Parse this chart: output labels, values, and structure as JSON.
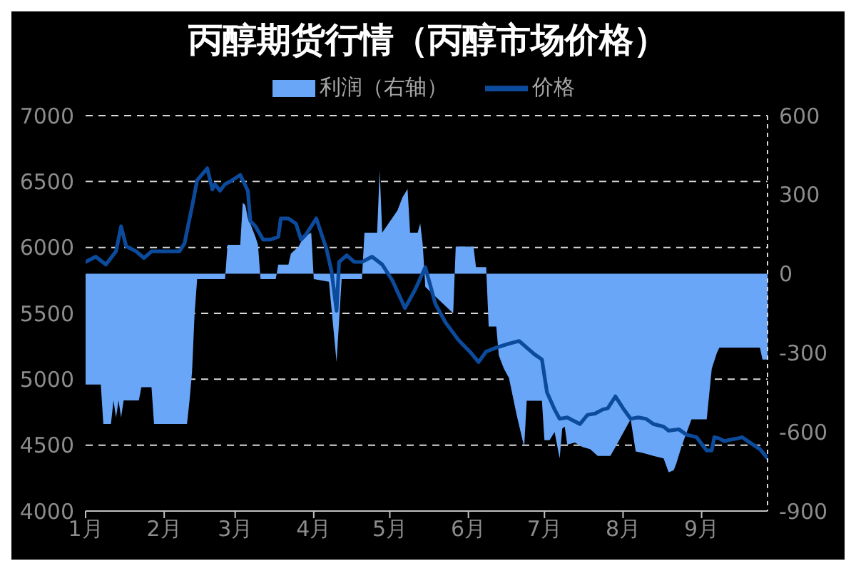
{
  "chart_data": {
    "type": "line",
    "title": "丙醇期货行情（丙醇市场价格）",
    "xlim": [
      "--01-01",
      "--09-27"
    ],
    "xticks": [
      {
        "value": "--01-01",
        "label": "1月"
      },
      {
        "value": "--02-01",
        "label": "2月"
      },
      {
        "value": "--03-01",
        "label": "3月"
      },
      {
        "value": "--04-01",
        "label": "4月"
      },
      {
        "value": "--05-01",
        "label": "5月"
      },
      {
        "value": "--06-01",
        "label": "6月"
      },
      {
        "value": "--07-01",
        "label": "7月"
      },
      {
        "value": "--08-01",
        "label": "8月"
      },
      {
        "value": "--09-01",
        "label": "9月"
      }
    ],
    "ylim": [
      4000,
      7000
    ],
    "yticks": [
      4000,
      4500,
      5000,
      5500,
      6000,
      6500,
      7000
    ],
    "y2lim": [
      -900,
      600
    ],
    "y2ticks": [
      -900,
      -600,
      -300,
      0,
      300,
      600
    ],
    "grid": "y",
    "legend": "top",
    "series": [
      {
        "name": "利润（右轴）",
        "type": "area",
        "axis": "y2",
        "color": "#6aa6f8",
        "x": [
          "--01-01",
          "--01-07",
          "--01-08",
          "--01-11",
          "--01-12",
          "--01-13",
          "--01-14",
          "--01-15",
          "--01-16",
          "--01-22",
          "--01-23",
          "--01-27",
          "--01-28",
          "--02-10",
          "--02-11",
          "--02-12",
          "--02-13",
          "--02-14",
          "--02-25",
          "--02-26",
          "--03-03",
          "--03-04",
          "--03-05",
          "--03-06",
          "--03-07",
          "--03-09",
          "--03-10",
          "--03-11",
          "--03-17",
          "--03-18",
          "--03-22",
          "--03-23",
          "--03-26",
          "--03-28",
          "--03-31",
          "--04-01",
          "--04-07",
          "--04-10",
          "--04-12",
          "--04-20",
          "--04-21",
          "--04-26",
          "--04-27",
          "--04-28",
          "--04-29",
          "--05-04",
          "--05-06",
          "--05-08",
          "--05-09",
          "--05-12",
          "--05-13",
          "--05-14",
          "--05-15",
          "--05-26",
          "--05-27",
          "--06-03",
          "--06-04",
          "--06-08",
          "--06-09",
          "--06-12",
          "--06-13",
          "--06-15",
          "--06-17",
          "--06-20",
          "--06-23",
          "--06-24",
          "--06-30",
          "--07-01",
          "--07-03",
          "--07-05",
          "--07-07",
          "--07-08",
          "--07-09",
          "--07-10",
          "--07-13",
          "--07-16",
          "--07-19",
          "--07-22",
          "--07-27",
          "--07-29",
          "--08-01",
          "--08-04",
          "--08-06",
          "--08-09",
          "--08-13",
          "--08-17",
          "--08-19",
          "--08-21",
          "--08-22",
          "--08-24",
          "--08-26",
          "--08-28",
          "--09-03",
          "--09-05",
          "--09-07",
          "--09-08",
          "--09-24",
          "--09-25",
          "--09-27"
        ],
        "values": [
          -420,
          -420,
          -570,
          -570,
          -480,
          -545,
          -480,
          -545,
          -480,
          -480,
          -430,
          -430,
          -570,
          -570,
          -480,
          -370,
          -150,
          -20,
          -20,
          110,
          110,
          270,
          260,
          210,
          190,
          140,
          110,
          -20,
          -20,
          35,
          35,
          77,
          103,
          139,
          156,
          -20,
          -30,
          -335,
          -20,
          -20,
          156,
          156,
          392,
          156,
          170,
          240,
          290,
          322,
          156,
          156,
          191,
          110,
          -50,
          -150,
          103,
          103,
          25,
          25,
          -200,
          -200,
          -310,
          -360,
          -395,
          -534,
          -657,
          -482,
          -482,
          -631,
          -631,
          -600,
          -700,
          -587,
          -580,
          -648,
          -640,
          -657,
          -665,
          -691,
          -691,
          -657,
          -604,
          -552,
          -674,
          -680,
          -691,
          -700,
          -753,
          -745,
          -720,
          -657,
          -604,
          -552,
          -552,
          -360,
          -300,
          -280,
          -280,
          -325,
          -325
        ]
      },
      {
        "name": "价格",
        "type": "line",
        "color": "#0c4a9c",
        "x": [
          "--01-01",
          "--01-05",
          "--01-09",
          "--01-13",
          "--01-15",
          "--01-17",
          "--01-21",
          "--01-24",
          "--01-27",
          "--02-07",
          "--02-09",
          "--02-12",
          "--02-14",
          "--02-18",
          "--02-20",
          "--02-21",
          "--02-23",
          "--02-25",
          "--02-27",
          "--03-03",
          "--03-06",
          "--03-07",
          "--03-09",
          "--03-12",
          "--03-15",
          "--03-18",
          "--03-19",
          "--03-22",
          "--03-25",
          "--03-27",
          "--03-29",
          "--04-02",
          "--04-06",
          "--04-08",
          "--04-10",
          "--04-11",
          "--04-14",
          "--04-17",
          "--04-20",
          "--04-24",
          "--04-28",
          "--05-02",
          "--05-07",
          "--05-11",
          "--05-15",
          "--05-19",
          "--05-23",
          "--05-28",
          "--06-02",
          "--06-05",
          "--06-08",
          "--06-12",
          "--06-17",
          "--06-21",
          "--06-27",
          "--06-30",
          "--07-02",
          "--07-05",
          "--07-07",
          "--07-10",
          "--07-12",
          "--07-15",
          "--07-18",
          "--07-21",
          "--07-24",
          "--07-26",
          "--07-29",
          "--08-01",
          "--08-04",
          "--08-07",
          "--08-10",
          "--08-13",
          "--08-17",
          "--08-19",
          "--08-23",
          "--08-26",
          "--08-30",
          "--09-03",
          "--09-05",
          "--09-06",
          "--09-08",
          "--09-10",
          "--09-12",
          "--09-15",
          "--09-17",
          "--09-20",
          "--09-24",
          "--09-27"
        ],
        "values": [
          5890,
          5930,
          5870,
          5970,
          6160,
          6010,
          5970,
          5920,
          5970,
          5970,
          6030,
          6310,
          6510,
          6600,
          6440,
          6480,
          6430,
          6480,
          6500,
          6550,
          6430,
          6200,
          6160,
          6060,
          6060,
          6080,
          6220,
          6220,
          6180,
          6060,
          6100,
          6220,
          5990,
          5820,
          5520,
          5890,
          5940,
          5890,
          5890,
          5930,
          5870,
          5750,
          5540,
          5680,
          5850,
          5570,
          5430,
          5300,
          5200,
          5130,
          5210,
          5240,
          5270,
          5290,
          5190,
          5150,
          4900,
          4770,
          4700,
          4710,
          4690,
          4660,
          4730,
          4740,
          4770,
          4780,
          4870,
          4780,
          4700,
          4710,
          4700,
          4660,
          4640,
          4610,
          4620,
          4580,
          4560,
          4460,
          4460,
          4560,
          4550,
          4530,
          4540,
          4550,
          4560,
          4520,
          4470,
          4400
        ]
      }
    ]
  }
}
